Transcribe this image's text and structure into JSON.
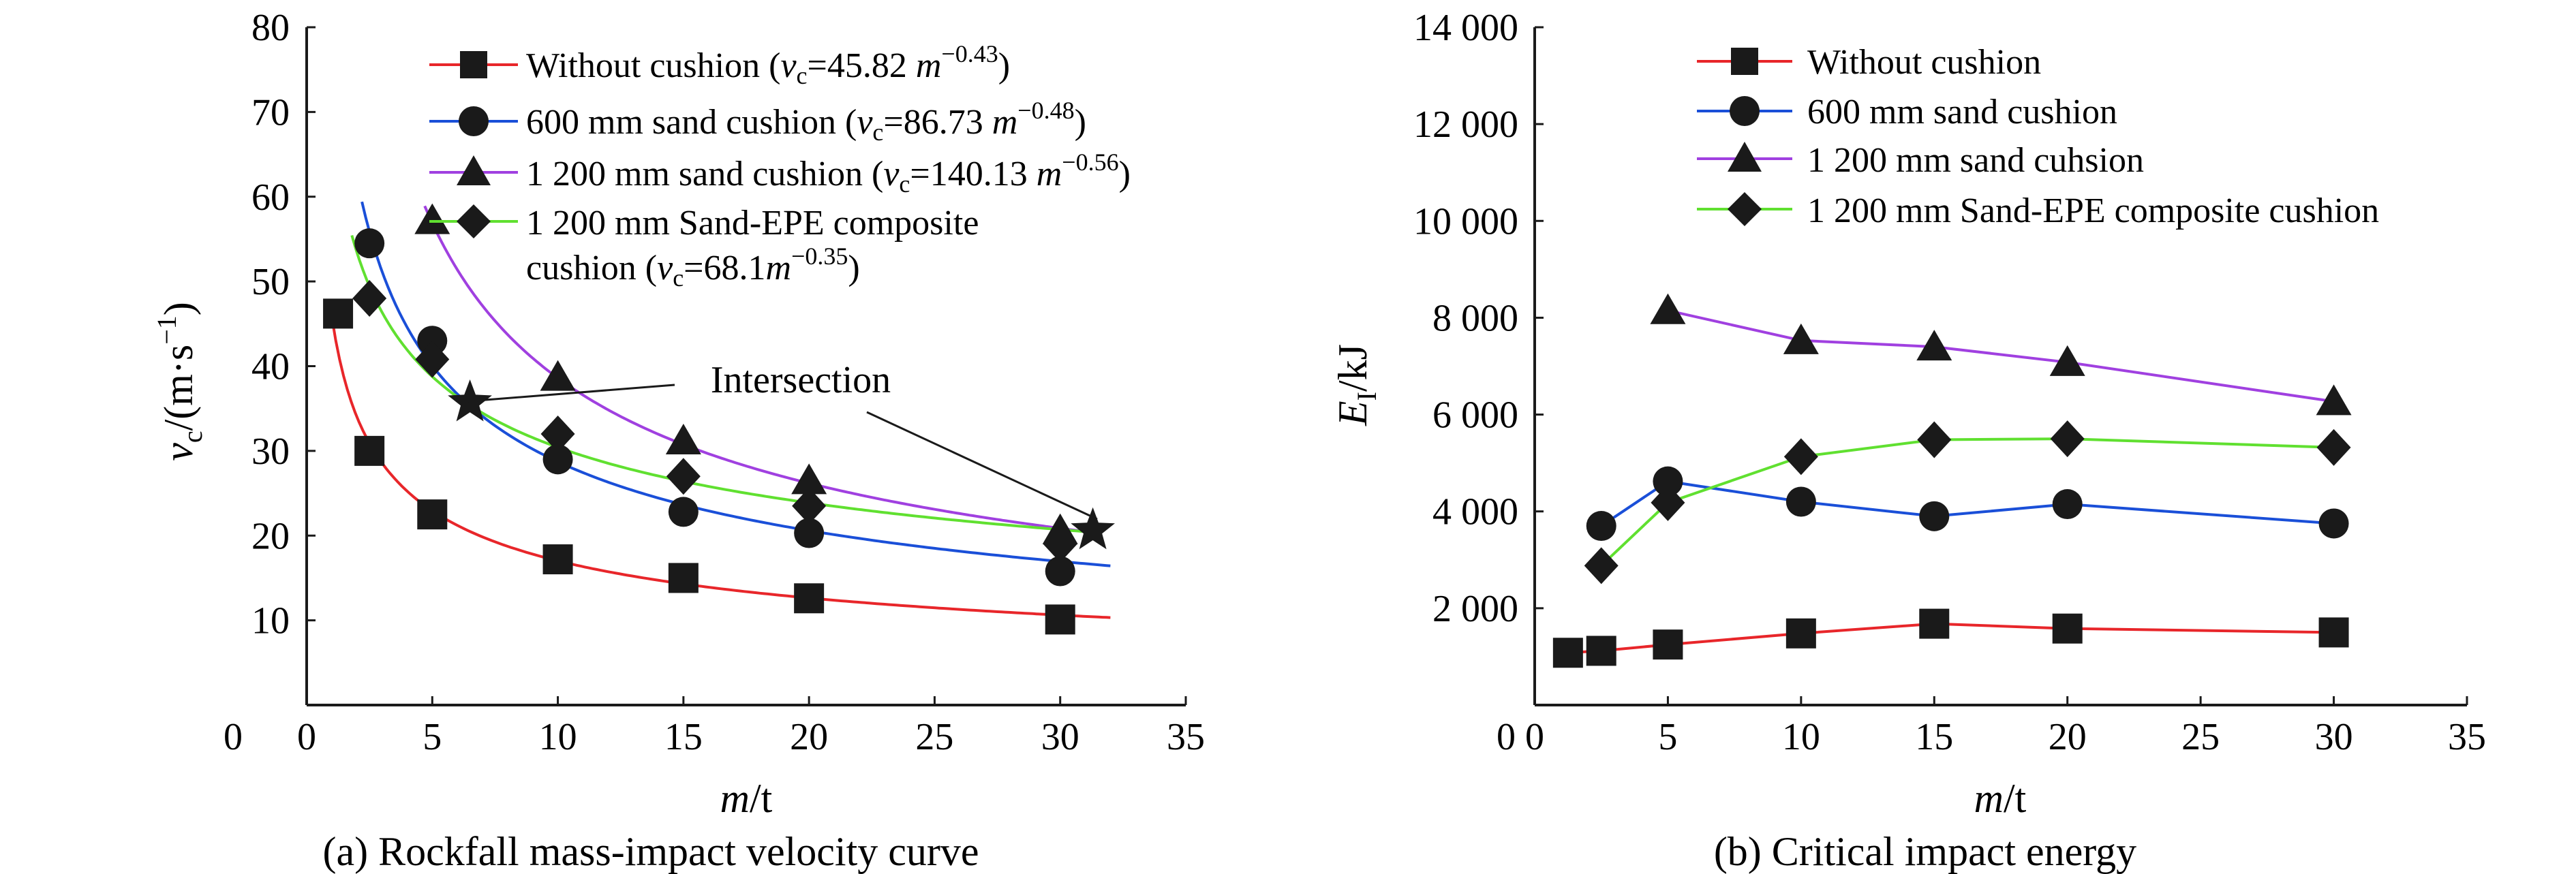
{
  "chart_data": [
    {
      "type": "scatter",
      "caption": "(a) Rockfall mass-impact velocity curve",
      "xlabel": {
        "var": "m",
        "unit": "/t"
      },
      "ylabel": {
        "var": "v",
        "sub": "c",
        "unit": "/(m·s",
        "sup": "−1",
        "close": ")"
      },
      "xlim": [
        0,
        35
      ],
      "ylim": [
        0,
        80
      ],
      "xticks": [
        0,
        5,
        10,
        15,
        20,
        25,
        30,
        35
      ],
      "yticks": [
        10,
        20,
        30,
        40,
        50,
        60,
        70,
        80
      ],
      "ytick_zero_label": "0",
      "series": [
        {
          "name": "Without cushion",
          "formula": {
            "coef": "45.82",
            "exp": "−0.43",
            "coef_num": 45.82,
            "exp_num": -0.43
          },
          "color": "#e8262a",
          "marker": "square",
          "points": [
            [
              1.25,
              46.2
            ],
            [
              2.5,
              30.0
            ],
            [
              5,
              22.5
            ],
            [
              10,
              17.2
            ],
            [
              15,
              15.0
            ],
            [
              20,
              12.6
            ],
            [
              30,
              10.1
            ]
          ],
          "fit_range": [
            1.0,
            32
          ]
        },
        {
          "name": "600 mm sand cushion",
          "formula": {
            "coef": "86.73",
            "exp": "−0.48",
            "coef_num": 86.73,
            "exp_num": -0.48
          },
          "color": "#1a4fd8",
          "marker": "circle",
          "points": [
            [
              2.5,
              54.5
            ],
            [
              5,
              43.0
            ],
            [
              10,
              29.0
            ],
            [
              15,
              22.8
            ],
            [
              20,
              20.3
            ],
            [
              30,
              15.8
            ]
          ],
          "fit_range": [
            2.2,
            32
          ]
        },
        {
          "name": "1 200 mm sand cushion",
          "formula": {
            "coef": "140.13",
            "exp": "−0.56",
            "coef_num": 140.13,
            "exp_num": -0.56
          },
          "color": "#a040e0",
          "marker": "triangle",
          "points": [
            [
              5,
              57.2
            ],
            [
              10,
              38.7
            ],
            [
              15,
              31.2
            ],
            [
              20,
              26.5
            ],
            [
              30,
              20.6
            ]
          ],
          "fit_range": [
            4.7,
            31
          ]
        },
        {
          "name_line1": "1 200 mm Sand-EPE composite",
          "name_line2": "cushion",
          "formula": {
            "coef": "68.1",
            "exp": "−0.35",
            "coef_num": 68.1,
            "exp_num": -0.35
          },
          "color": "#60e030",
          "marker": "diamond",
          "points": [
            [
              2.5,
              48.0
            ],
            [
              5,
              40.8
            ],
            [
              10,
              32.0
            ],
            [
              15,
              27.0
            ],
            [
              20,
              23.5
            ],
            [
              30,
              19.0
            ]
          ],
          "fit_range": [
            1.8,
            31
          ]
        }
      ],
      "intersections": [
        [
          6.5,
          35.7
        ],
        [
          31.3,
          20.6
        ]
      ],
      "annotation": {
        "text": "Intersection",
        "x": 14.8,
        "y": 42.5
      }
    },
    {
      "type": "line",
      "caption": "(b) Critical impact energy",
      "xlabel": {
        "var": "m",
        "unit": "/t"
      },
      "ylabel": {
        "var": "E",
        "sub": "I",
        "unit": "/kJ"
      },
      "xlim": [
        0,
        35
      ],
      "ylim": [
        0,
        14000
      ],
      "xticks": [
        0,
        5,
        10,
        15,
        20,
        25,
        30,
        35
      ],
      "yticks": [
        2000,
        4000,
        6000,
        8000,
        10000,
        12000,
        14000
      ],
      "ytick_labels": [
        "2 000",
        "4 000",
        "6 000",
        "8 000",
        "10 000",
        "12 000",
        "14 000"
      ],
      "ytick_zero_label": "0",
      "series": [
        {
          "name": "Without cushion",
          "color": "#e8262a",
          "marker": "square",
          "points": [
            [
              1.25,
              1080
            ],
            [
              2.5,
              1120
            ],
            [
              5,
              1250
            ],
            [
              10,
              1480
            ],
            [
              15,
              1680
            ],
            [
              20,
              1580
            ],
            [
              30,
              1500
            ]
          ]
        },
        {
          "name": "600 mm sand cushion",
          "color": "#1a4fd8",
          "marker": "circle",
          "points": [
            [
              2.5,
              3700
            ],
            [
              5,
              4620
            ],
            [
              10,
              4200
            ],
            [
              15,
              3900
            ],
            [
              20,
              4150
            ],
            [
              30,
              3750
            ]
          ]
        },
        {
          "name": "1 200 mm sand cuhsion",
          "color": "#a040e0",
          "marker": "triangle",
          "points": [
            [
              5,
              8150
            ],
            [
              10,
              7530
            ],
            [
              15,
              7400
            ],
            [
              20,
              7080
            ],
            [
              30,
              6270
            ]
          ]
        },
        {
          "name": "1 200 mm Sand-EPE composite cushion",
          "color": "#60e030",
          "marker": "diamond",
          "points": [
            [
              2.5,
              2880
            ],
            [
              5,
              4180
            ],
            [
              10,
              5130
            ],
            [
              15,
              5480
            ],
            [
              20,
              5500
            ],
            [
              30,
              5320
            ]
          ]
        }
      ]
    }
  ]
}
